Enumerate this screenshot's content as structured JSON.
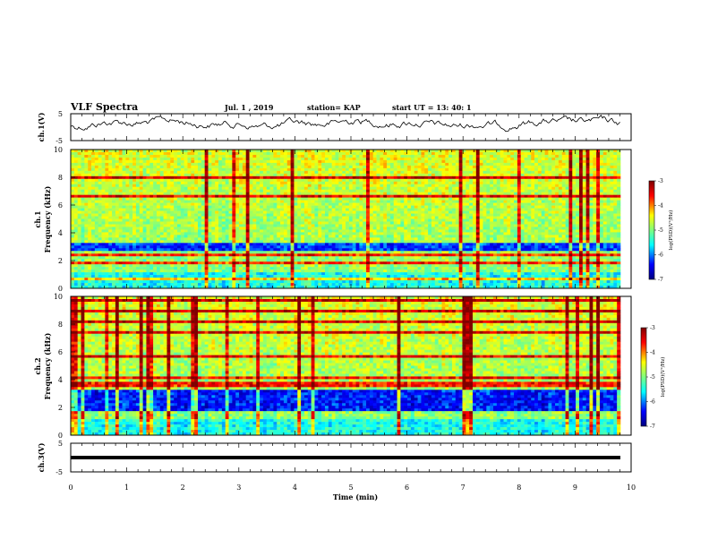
{
  "header": {
    "title": "VLF Spectra",
    "date": "Jul. 1 , 2019",
    "station": "station= KAP",
    "start_time": "start UT = 13: 40: 1"
  },
  "chart_data": [
    {
      "type": "line",
      "panel": "ch1-waveform",
      "ylabel": "ch.1(V)",
      "ylim": [
        -5,
        5
      ],
      "yticks": [
        "5",
        "-5"
      ],
      "xlim": [
        0,
        10
      ],
      "description_of_trace": "noisy black amplitude trace",
      "color": "#000000"
    },
    {
      "type": "heatmap",
      "panel": "ch1-spectrogram",
      "ylabel": "ch.1\nFrequency (kHz)",
      "ylim": [
        0,
        10
      ],
      "yticks": [
        "0",
        "2",
        "4",
        "6",
        "8",
        "10"
      ],
      "xlim": [
        0,
        10
      ],
      "colorbar": {
        "label": "log(PSD)(V²/Hz)",
        "range": [
          -7,
          -3
        ],
        "ticks": [
          "-3",
          "-4",
          "-5",
          "-6",
          "-7"
        ]
      }
    },
    {
      "type": "heatmap",
      "panel": "ch2-spectrogram",
      "ylabel": "ch.2\nFrequency (kHz)",
      "ylim": [
        0,
        10
      ],
      "yticks": [
        "0",
        "2",
        "4",
        "6",
        "8",
        "10"
      ],
      "xlim": [
        0,
        10
      ],
      "colorbar": {
        "label": "log(PSD)(V²/Hz)",
        "range": [
          -7,
          -3
        ],
        "ticks": [
          "-3",
          "-4",
          "-5",
          "-6",
          "-7"
        ]
      }
    },
    {
      "type": "line",
      "panel": "ch3-waveform",
      "ylabel": "ch.3(V)",
      "ylim": [
        -5,
        5
      ],
      "yticks": [
        "5",
        "0",
        "-5"
      ],
      "xlim": [
        0,
        10
      ],
      "constant_value": 0,
      "color": "#000000"
    }
  ],
  "xaxis": {
    "label": "Time (min)",
    "ticks": [
      "0",
      "1",
      "2",
      "3",
      "4",
      "5",
      "6",
      "7",
      "8",
      "9",
      "10"
    ]
  },
  "colors": {
    "colormap": [
      "#00007f",
      "#0000ff",
      "#00ffff",
      "#7fff7f",
      "#ffff00",
      "#ff0000",
      "#7f0000"
    ]
  }
}
